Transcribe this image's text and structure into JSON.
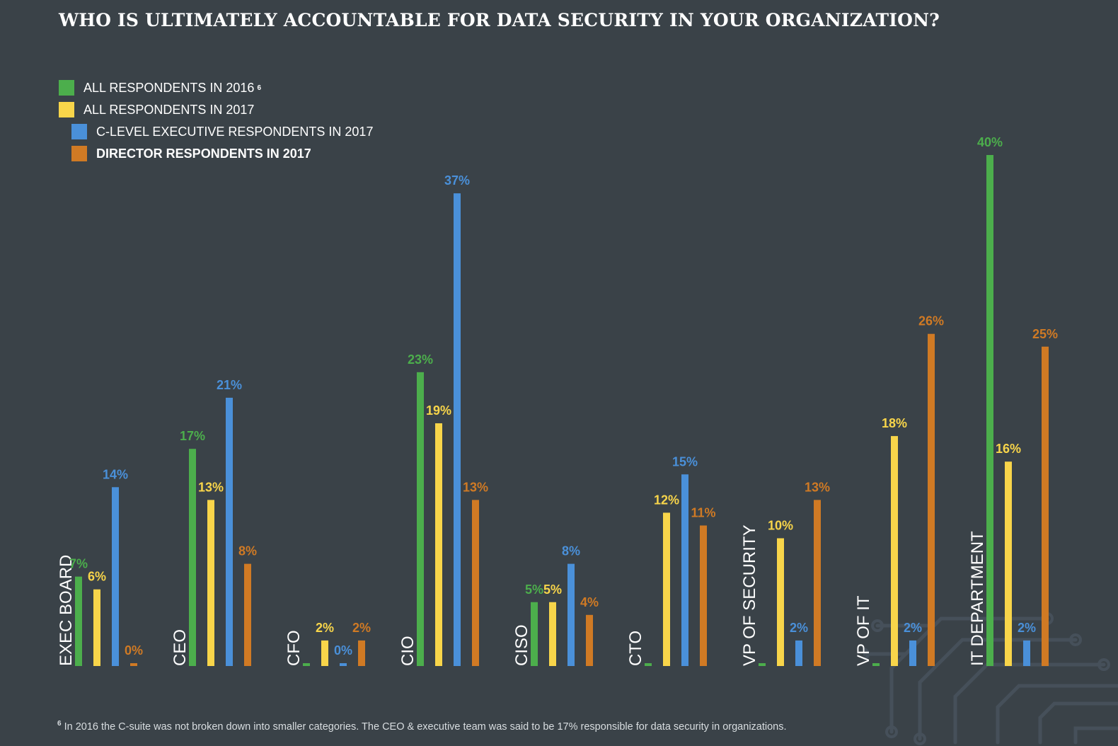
{
  "header": {
    "title": "WHO IS ULTIMATELY ACCOUNTABLE FOR DATA SECURITY IN YOUR ORGANIZATION?"
  },
  "legend": {
    "items": [
      {
        "label": "ALL RESPONDENTS IN 2016",
        "superscript": "6",
        "color": "#4cae4c"
      },
      {
        "label": "ALL RESPONDENTS IN 2017",
        "superscript": "",
        "color": "#f8d54a"
      },
      {
        "label": "C-LEVEL EXECUTIVE RESPONDENTS IN 2017",
        "superscript": "",
        "color": "#4a90d9"
      },
      {
        "label": "DIRECTOR RESPONDENTS IN 2017",
        "superscript": "",
        "color": "#d07a24"
      }
    ]
  },
  "footnote": {
    "marker": "6",
    "text": "In 2016 the C-suite was not broken down into smaller categories. The CEO & executive team was said to be 17% responsible for data security in organizations."
  },
  "chart_data": {
    "type": "bar",
    "title": "WHO IS ULTIMATELY ACCOUNTABLE FOR DATA SECURITY IN YOUR ORGANIZATION?",
    "categories": [
      "EXEC BOARD",
      "CEO",
      "CFO",
      "CIO",
      "CISO",
      "CTO",
      "VP OF SECURITY",
      "VP OF IT",
      "IT DEPARTMENT"
    ],
    "series": [
      {
        "name": "ALL RESPONDENTS IN 2016",
        "color": "#4cae4c",
        "values": [
          7,
          17,
          null,
          23,
          5,
          null,
          null,
          null,
          40
        ],
        "labels": [
          "7%",
          "17%",
          "",
          "23%",
          "5%",
          "",
          "",
          "",
          "40%"
        ]
      },
      {
        "name": "ALL RESPONDENTS IN 2017",
        "color": "#f8d54a",
        "values": [
          6,
          13,
          2,
          19,
          5,
          12,
          10,
          18,
          16
        ],
        "labels": [
          "6%",
          "13%",
          "2%",
          "19%",
          "5%",
          "12%",
          "10%",
          "18%",
          "16%"
        ]
      },
      {
        "name": "C-LEVEL EXECUTIVE RESPONDENTS IN 2017",
        "color": "#4a90d9",
        "values": [
          14,
          21,
          0,
          37,
          8,
          15,
          2,
          2,
          2
        ],
        "labels": [
          "14%",
          "21%",
          "0%",
          "37%",
          "8%",
          "15%",
          "2%",
          "2%",
          "2%"
        ]
      },
      {
        "name": "DIRECTOR RESPONDENTS IN 2017",
        "color": "#d07a24",
        "values": [
          0,
          8,
          2,
          13,
          4,
          11,
          13,
          26,
          25
        ],
        "labels": [
          "0%",
          "8%",
          "2%",
          "13%",
          "4%",
          "11%",
          "13%",
          "26%",
          "25%"
        ]
      }
    ],
    "unit": "%",
    "ylim": [
      0,
      40
    ],
    "grid": false,
    "legend_position": "top-left"
  }
}
